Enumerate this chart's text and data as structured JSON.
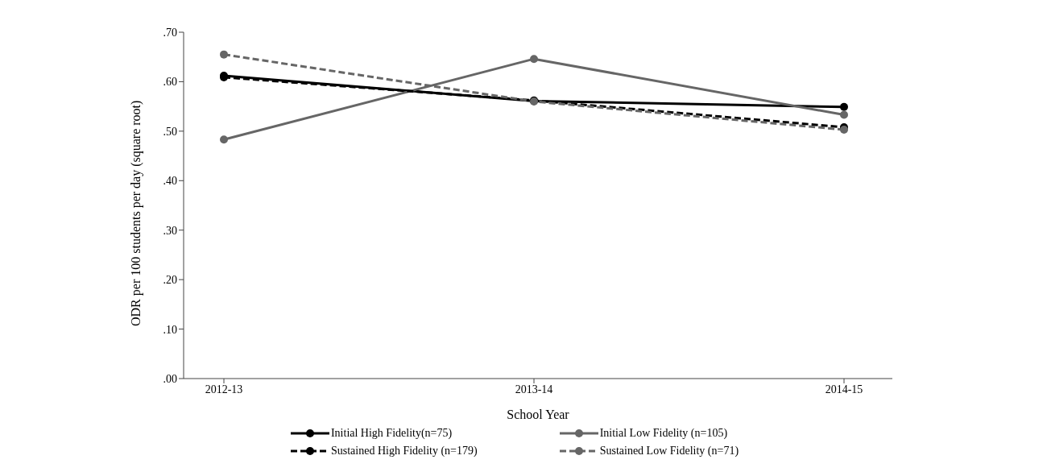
{
  "chart_data": {
    "type": "line",
    "xlabel": "School Year",
    "ylabel": "ODR per 100 students per day (square root)",
    "categories": [
      "2012-13",
      "2013-14",
      "2014-15"
    ],
    "series": [
      {
        "name": "Initial High Fidelity(n=75)",
        "color": "#000000",
        "line_style": "solid",
        "values": [
          0.612,
          0.561,
          0.549
        ]
      },
      {
        "name": "Initial Low Fidelity (n=105)",
        "color": "#666666",
        "line_style": "solid",
        "values": [
          0.483,
          0.646,
          0.533
        ]
      },
      {
        "name": "Sustained High Fidelity (n=179)",
        "color": "#000000",
        "line_style": "dashed",
        "values": [
          0.609,
          0.562,
          0.508
        ]
      },
      {
        "name": "Sustained Low Fidelity (n=71)",
        "color": "#666666",
        "line_style": "dashed",
        "values": [
          0.655,
          0.56,
          0.503
        ]
      }
    ],
    "ylim": [
      0,
      0.7
    ],
    "yticks": [
      {
        "value": 0,
        "label": ".00"
      },
      {
        "value": 0.1,
        "label": ".10"
      },
      {
        "value": 0.2,
        "label": ".20"
      },
      {
        "value": 0.3,
        "label": ".30"
      },
      {
        "value": 0.4,
        "label": ".40"
      },
      {
        "value": 0.5,
        "label": ".50"
      },
      {
        "value": 0.6,
        "label": ".60"
      },
      {
        "value": 0.7,
        "label": ".70"
      }
    ],
    "grid": false,
    "legend": "bottom",
    "marker": "circle"
  }
}
